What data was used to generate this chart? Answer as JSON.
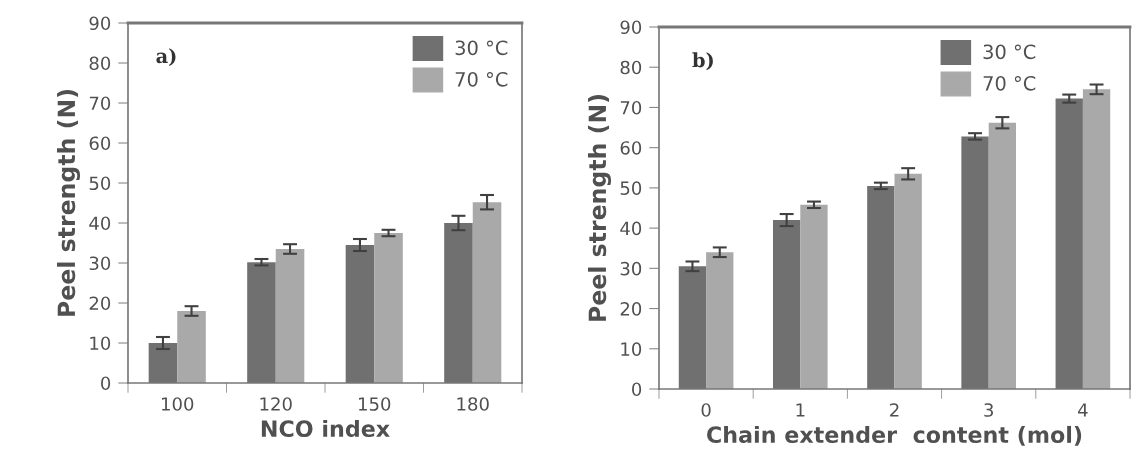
{
  "chart_data": [
    {
      "type": "bar",
      "annotations": [
        "a)"
      ],
      "xlabel": "NCO index",
      "ylabel": "Peel strength (N)",
      "categories": [
        "100",
        "120",
        "150",
        "180"
      ],
      "series": [
        {
          "name": "30 °C",
          "color": "#707070",
          "values": [
            10,
            30.2,
            34.5,
            40
          ],
          "errors": [
            1.5,
            0.8,
            1.5,
            1.8
          ]
        },
        {
          "name": "70 °C",
          "color": "#a9a9a9",
          "values": [
            18,
            33.5,
            37.5,
            45.2
          ],
          "errors": [
            1.2,
            1.2,
            0.8,
            1.8
          ]
        }
      ],
      "ylim": [
        0,
        90
      ],
      "yticks": [
        0,
        10,
        20,
        30,
        40,
        50,
        60,
        70,
        80,
        90
      ],
      "grid": false,
      "legend": "top right"
    },
    {
      "type": "bar",
      "annotations": [
        "b)"
      ],
      "xlabel": "Chain extender  content (mol)",
      "ylabel": "Peel strength (N)",
      "categories": [
        "0",
        "1",
        "2",
        "3",
        "4"
      ],
      "series": [
        {
          "name": "30 °C",
          "color": "#707070",
          "values": [
            30.5,
            42,
            50.5,
            62.8,
            72.2
          ],
          "errors": [
            1.2,
            1.5,
            0.8,
            0.8,
            1.0
          ]
        },
        {
          "name": "70 °C",
          "color": "#a9a9a9",
          "values": [
            34,
            45.8,
            53.5,
            66.2,
            74.5
          ],
          "errors": [
            1.2,
            0.8,
            1.4,
            1.4,
            1.2
          ]
        }
      ],
      "ylim": [
        0,
        90
      ],
      "yticks": [
        0,
        10,
        20,
        30,
        40,
        50,
        60,
        70,
        80,
        90
      ],
      "grid": false,
      "legend": "top right"
    }
  ]
}
